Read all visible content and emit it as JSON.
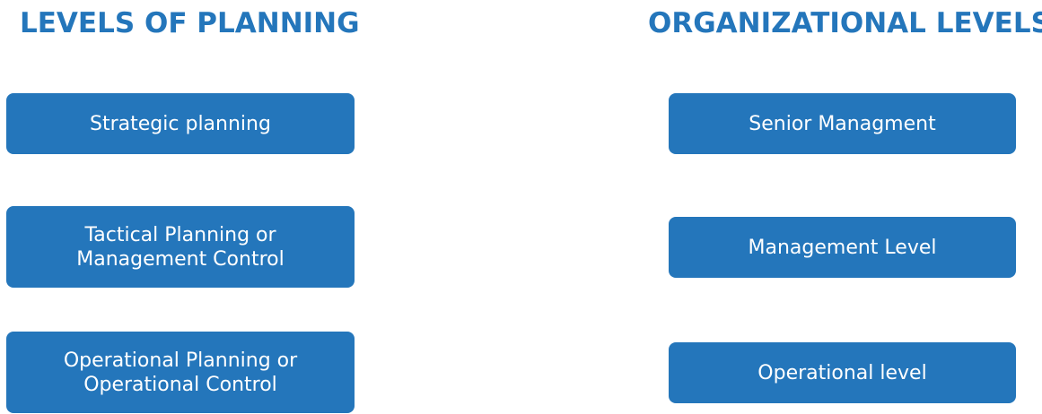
{
  "columns": [
    {
      "title": "LEVELS OF PLANNING",
      "items": [
        "Strategic planning",
        "Tactical Planning or Management Control",
        "Operational Planning or Operational Control"
      ]
    },
    {
      "title": "ORGANIZATIONAL LEVELS",
      "items": [
        "Senior Managment",
        "Management Level",
        "Operational level"
      ]
    }
  ]
}
